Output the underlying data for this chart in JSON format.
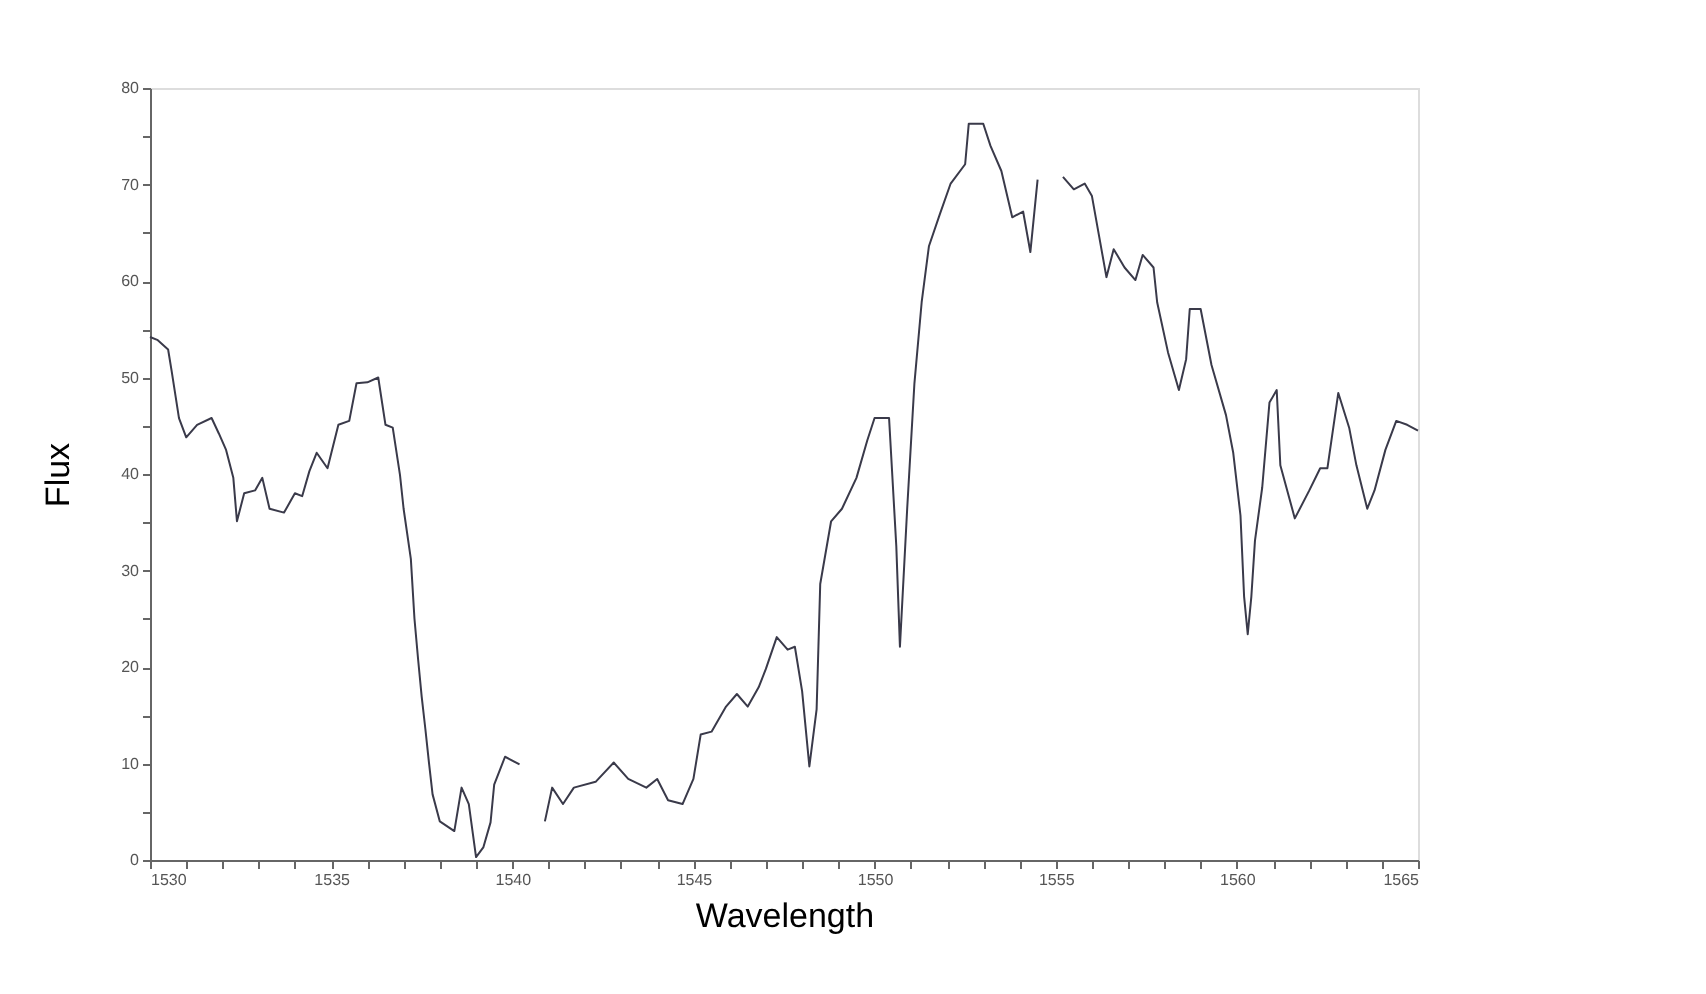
{
  "chart_data": {
    "type": "line",
    "xlabel": "Wavelength",
    "ylabel": "Flux",
    "xlim": [
      1530,
      1565
    ],
    "ylim": [
      0,
      80
    ],
    "xticks": [
      1530,
      {
        "value": 1531,
        "label": null
      },
      {
        "value": 1532,
        "label": null
      },
      {
        "value": 1533,
        "label": null
      },
      {
        "value": 1534,
        "label": null
      },
      1535,
      {
        "value": 1536,
        "label": null
      },
      {
        "value": 1537,
        "label": null
      },
      {
        "value": 1538,
        "label": null
      },
      {
        "value": 1539,
        "label": null
      },
      1540,
      {
        "value": 1541,
        "label": null
      },
      {
        "value": 1542,
        "label": null
      },
      {
        "value": 1543,
        "label": null
      },
      {
        "value": 1544,
        "label": null
      },
      1545,
      {
        "value": 1546,
        "label": null
      },
      {
        "value": 1547,
        "label": null
      },
      {
        "value": 1548,
        "label": null
      },
      {
        "value": 1549,
        "label": null
      },
      1550,
      {
        "value": 1551,
        "label": null
      },
      {
        "value": 1552,
        "label": null
      },
      {
        "value": 1553,
        "label": null
      },
      {
        "value": 1554,
        "label": null
      },
      1555,
      {
        "value": 1556,
        "label": null
      },
      {
        "value": 1557,
        "label": null
      },
      {
        "value": 1558,
        "label": null
      },
      {
        "value": 1559,
        "label": null
      },
      1560,
      {
        "value": 1561,
        "label": null
      },
      {
        "value": 1562,
        "label": null
      },
      {
        "value": 1563,
        "label": null
      },
      {
        "value": 1564,
        "label": null
      },
      1565
    ],
    "yticks": [
      0,
      {
        "value": 5,
        "label": null
      },
      10,
      {
        "value": 15,
        "label": null
      },
      20,
      {
        "value": 25,
        "label": null
      },
      30,
      {
        "value": 35,
        "label": null
      },
      40,
      {
        "value": 45,
        "label": null
      },
      50,
      {
        "value": 55,
        "label": null
      },
      60,
      {
        "value": 65,
        "label": null
      },
      70,
      {
        "value": 75,
        "label": null
      },
      80
    ],
    "grid": false,
    "marker": "none",
    "line_style": "solid",
    "series": [
      {
        "color": "#3a3a4a",
        "x": [
          1530,
          1530.2,
          1530.5,
          1530.6,
          1530.8,
          1531.0,
          1531.3,
          1531.7,
          1531.9,
          1532.1,
          1532.3,
          1532.4,
          1532.6,
          1532.9,
          1533.1,
          1533.3,
          1533.7,
          1534.0,
          1534.2,
          1534.4,
          1534.6,
          1534.9,
          1535.2,
          1535.5,
          1535.7,
          1536.0,
          1536.3,
          1536.5,
          1536.7,
          1536.9,
          1537.0,
          1537.2,
          1537.3,
          1537.4,
          1537.5,
          1537.6,
          1537.7,
          1537.8,
          1538.0,
          1538.4,
          1538.6,
          1538.8,
          1539.0,
          1539.2,
          1539.4,
          1539.5,
          1539.8,
          1540.2,
          1540.5,
          1540.9,
          1541.1,
          1541.4,
          1541.7,
          1542.3,
          1542.8,
          1543.2,
          1543.7,
          1544.0,
          1544.3,
          1544.7,
          1545.0,
          1545.2,
          1545.5,
          1545.9,
          1546.2,
          1546.5,
          1546.8,
          1547.0,
          1547.3,
          1547.6,
          1547.8,
          1548.0,
          1548.2,
          1548.4,
          1548.5,
          1548.8,
          1549.1,
          1549.5,
          1549.8,
          1550.0,
          1550.4,
          1550.6,
          1550.7,
          1550.9,
          1551.1,
          1551.3,
          1551.5,
          1551.8,
          1552.1,
          1552.5,
          1552.6,
          1553.0,
          1553.2,
          1553.5,
          1553.8,
          1554.1,
          1554.3,
          1554.5,
          1554.8,
          1555.2,
          1555.5,
          1555.8,
          1556.0,
          1556.2,
          1556.4,
          1556.6,
          1556.9,
          1557.2,
          1557.4,
          1557.7,
          1557.8,
          1558.1,
          1558.4,
          1558.6,
          1558.7,
          1559.0,
          1559.3,
          1559.7,
          1559.9,
          1560.1,
          1560.2,
          1560.3,
          1560.4,
          1560.5,
          1560.7,
          1560.9,
          1561.1,
          1561.2,
          1561.6,
          1562.0,
          1562.3,
          1562.5,
          1562.8,
          1563.1,
          1563.3,
          1563.6,
          1563.8,
          1564.1,
          1564.4,
          1564.7,
          1565.0
        ],
        "values": [
          54.2,
          53.9,
          52.9,
          50.6,
          45.8,
          43.8,
          45.1,
          45.8,
          44.2,
          42.5,
          39.6,
          35.1,
          38.0,
          38.3,
          39.6,
          36.4,
          36.0,
          38.0,
          37.7,
          40.3,
          42.2,
          40.6,
          45.1,
          45.5,
          49.4,
          49.5,
          50.0,
          45.1,
          44.8,
          39.9,
          36.4,
          31.2,
          25.0,
          20.8,
          16.9,
          13.6,
          10.1,
          6.8,
          4.0,
          3.0,
          7.5,
          5.8,
          0.3,
          1.3,
          3.9,
          7.8,
          10.7,
          9.9,
          null,
          4.0,
          7.5,
          5.8,
          7.5,
          8.1,
          10.1,
          8.4,
          7.5,
          8.4,
          6.2,
          5.8,
          8.4,
          13.0,
          13.3,
          15.9,
          17.2,
          15.9,
          17.9,
          19.8,
          23.1,
          21.8,
          22.1,
          17.5,
          9.7,
          15.6,
          28.6,
          35.1,
          36.4,
          39.6,
          43.5,
          45.8,
          45.8,
          32.5,
          22.1,
          36.4,
          49.4,
          57.8,
          63.6,
          66.9,
          70.1,
          72.1,
          76.3,
          76.3,
          74.0,
          71.4,
          66.6,
          67.2,
          63.0,
          70.5,
          null,
          70.8,
          69.5,
          70.1,
          68.8,
          64.6,
          60.4,
          63.3,
          61.4,
          60.1,
          62.7,
          61.4,
          57.8,
          52.6,
          48.7,
          51.9,
          57.1,
          57.1,
          51.3,
          46.1,
          42.2,
          35.7,
          27.3,
          23.4,
          27.3,
          33.1,
          38.6,
          47.4,
          48.7,
          40.9,
          35.4,
          38.3,
          40.6,
          40.6,
          48.4,
          44.8,
          40.9,
          36.4,
          38.3,
          42.5,
          45.5,
          45.1,
          44.5
        ]
      }
    ]
  }
}
